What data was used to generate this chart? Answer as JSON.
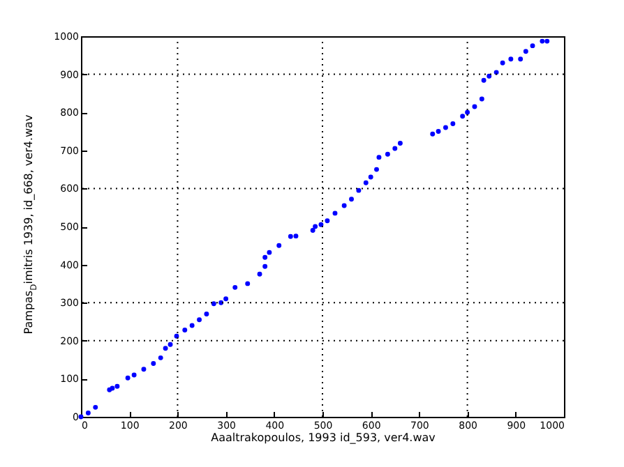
{
  "chart_data": {
    "type": "scatter",
    "xlabel": "Aaaltrakopoulos, 1993 id_593, ver4.wav",
    "ylabel": "Pampas$_{D}$imitris 1939, id_668, ver4.wav",
    "xlim": [
      0,
      1000
    ],
    "ylim": [
      0,
      1000
    ],
    "xticks": [
      0,
      100,
      200,
      300,
      400,
      500,
      600,
      700,
      800,
      900,
      1000
    ],
    "yticks": [
      0,
      100,
      200,
      300,
      400,
      500,
      600,
      700,
      800,
      900,
      1000
    ],
    "marker": "circle",
    "ref_lines": [
      {
        "axis": "x",
        "value": 200,
        "line_style": "dotted",
        "color": "#000000"
      },
      {
        "axis": "x",
        "value": 500,
        "line_style": "dotted",
        "color": "#000000"
      },
      {
        "axis": "x",
        "value": 800,
        "line_style": "dotted",
        "color": "#000000"
      },
      {
        "axis": "y",
        "value": 200,
        "line_style": "dotted",
        "color": "#000000"
      },
      {
        "axis": "y",
        "value": 300,
        "line_style": "dotted",
        "color": "#000000"
      },
      {
        "axis": "y",
        "value": 600,
        "line_style": "dotted",
        "color": "#000000"
      },
      {
        "axis": "y",
        "value": 900,
        "line_style": "dotted",
        "color": "#000000"
      }
    ],
    "series": [
      {
        "color": "#0000ff",
        "x": [
          0,
          15,
          30,
          59,
          65,
          75,
          97,
          110,
          130,
          150,
          165,
          175,
          185,
          198,
          215,
          230,
          245,
          260,
          275,
          290,
          300,
          319,
          345,
          370,
          381,
          381,
          390,
          410,
          434,
          445,
          480,
          485,
          497,
          510,
          526,
          545,
          560,
          575,
          590,
          600,
          612,
          617,
          635,
          650,
          661,
          728,
          740,
          755,
          770,
          790,
          800,
          815,
          830,
          834,
          845,
          860,
          873,
          890,
          910,
          921,
          935,
          955,
          965
        ],
        "values": [
          0,
          10,
          25,
          71,
          75,
          80,
          102,
          110,
          125,
          140,
          155,
          180,
          190,
          212,
          228,
          240,
          255,
          270,
          297,
          300,
          310,
          340,
          350,
          375,
          395,
          419,
          432,
          450,
          474,
          475,
          490,
          500,
          505,
          515,
          535,
          555,
          572,
          595,
          615,
          630,
          650,
          682,
          690,
          705,
          719,
          743,
          750,
          760,
          770,
          790,
          800,
          815,
          835,
          884,
          895,
          905,
          930,
          940,
          940,
          960,
          975,
          987,
          987
        ]
      }
    ]
  }
}
